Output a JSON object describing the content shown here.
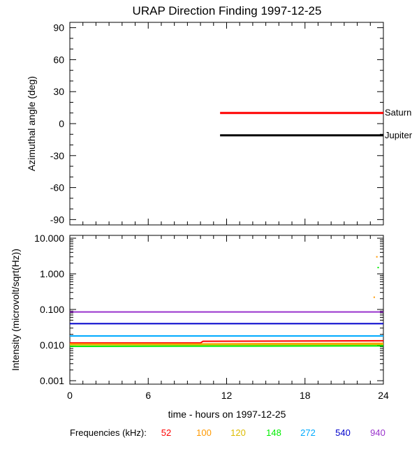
{
  "chart_data": {
    "title": "URAP Direction Finding  1997-12-25",
    "xlabel": "time - hours on 1997-12-25",
    "xlim": [
      0,
      24
    ],
    "xticks": [
      0,
      6,
      12,
      18,
      24
    ],
    "x_tick_labels": [
      "0",
      "6",
      "12",
      "18",
      "24"
    ],
    "panels": [
      {
        "type": "line",
        "ylabel": "Azimuthal angle (deg)",
        "ylim": [
          -95,
          95
        ],
        "yticks": [
          -90,
          -60,
          -30,
          0,
          30,
          60,
          90
        ],
        "y_tick_labels": [
          "-90",
          "-60",
          "-30",
          "0",
          "30",
          "60",
          "90"
        ],
        "series": [
          {
            "name": "Saturn",
            "color": "#ff0000",
            "x": [
              11.5,
              24
            ],
            "y": [
              10,
              10
            ]
          },
          {
            "name": "Jupiter",
            "color": "#000000",
            "x": [
              11.5,
              24
            ],
            "y": [
              -11,
              -11
            ]
          }
        ]
      },
      {
        "type": "line",
        "scale": "log",
        "ylabel": "Intensity (microvolt/sqrt(Hz))",
        "ylim": [
          0.0008,
          12
        ],
        "yticks": [
          0.001,
          0.01,
          0.1,
          1,
          10
        ],
        "y_tick_labels": [
          "0.001",
          "0.010",
          "0.100",
          "1.000",
          "10.000"
        ],
        "series": [
          {
            "name": "52",
            "color": "#ff0000",
            "x": [
              0,
              10,
              10.2,
              24
            ],
            "y": [
              0.0115,
              0.0115,
              0.0128,
              0.0132
            ]
          },
          {
            "name": "100",
            "color": "#ff9900",
            "x": [
              0,
              10,
              23.4,
              24
            ],
            "y": [
              0.0108,
              0.0108,
              0.0112,
              0.0112
            ],
            "spikes": [
              [
                23.5,
                3.0
              ],
              [
                23.3,
                0.22
              ]
            ]
          },
          {
            "name": "120",
            "color": "#ddbb00",
            "x": [
              0,
              24
            ],
            "y": [
              0.0102,
              0.0104
            ]
          },
          {
            "name": "148",
            "color": "#00ee00",
            "x": [
              0,
              24
            ],
            "y": [
              0.0092,
              0.0095
            ],
            "spikes": [
              [
                23.6,
                1.5
              ]
            ]
          },
          {
            "name": "272",
            "color": "#00aaff",
            "x": [
              0,
              24
            ],
            "y": [
              0.018,
              0.018
            ]
          },
          {
            "name": "540",
            "color": "#0000cc",
            "x": [
              0,
              24
            ],
            "y": [
              0.04,
              0.04
            ]
          },
          {
            "name": "940",
            "color": "#9933cc",
            "x": [
              0,
              24
            ],
            "y": [
              0.085,
              0.085
            ]
          }
        ]
      }
    ],
    "legend": {
      "label": "Frequencies (kHz):",
      "position": "bottom",
      "entries": [
        "52",
        "100",
        "120",
        "148",
        "272",
        "540",
        "940"
      ]
    }
  }
}
